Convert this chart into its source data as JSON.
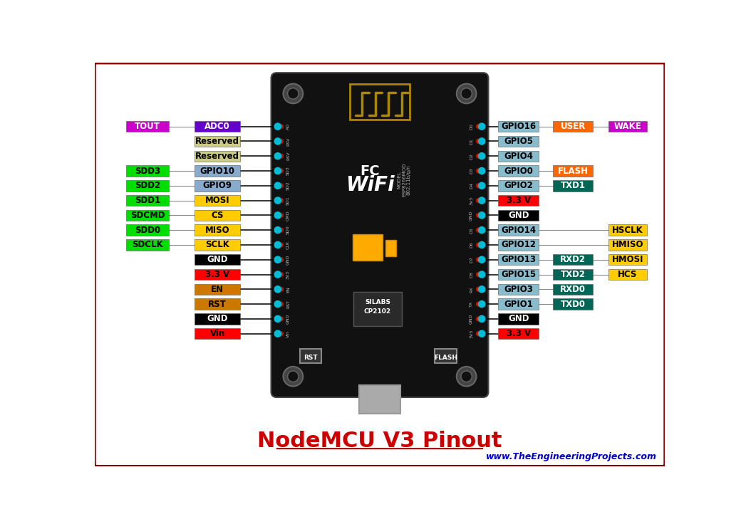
{
  "title": "NodeMCU V3 Pinout",
  "website": "www.TheEngineeringProjects.com",
  "background_color": "#ffffff",
  "border_color": "#8B0000",
  "board_color": "#111111",
  "pin_dot_color": "#00BCD4",
  "fig_w": 10.4,
  "fig_h": 7.36,
  "dpi": 100,
  "left_pins": [
    {
      "row": 0,
      "l1": "TOUT",
      "c1": "#CC00CC",
      "tc1": "white",
      "l2": "ADC0",
      "c2": "#6600CC",
      "tc2": "white"
    },
    {
      "row": 1,
      "l1": null,
      "c1": null,
      "tc1": null,
      "l2": "Reserved",
      "c2": "#CCCC88",
      "tc2": "black"
    },
    {
      "row": 2,
      "l1": null,
      "c1": null,
      "tc1": null,
      "l2": "Reserved",
      "c2": "#CCCC88",
      "tc2": "black"
    },
    {
      "row": 3,
      "l1": "SDD3",
      "c1": "#00DD00",
      "tc1": "black",
      "l2": "GPIO10",
      "c2": "#88AACC",
      "tc2": "black"
    },
    {
      "row": 4,
      "l1": "SDD2",
      "c1": "#00DD00",
      "tc1": "black",
      "l2": "GPIO9",
      "c2": "#88AACC",
      "tc2": "black"
    },
    {
      "row": 5,
      "l1": "SDD1",
      "c1": "#00DD00",
      "tc1": "black",
      "l2": "MOSI",
      "c2": "#FFCC00",
      "tc2": "black"
    },
    {
      "row": 6,
      "l1": "SDCMD",
      "c1": "#00DD00",
      "tc1": "black",
      "l2": "CS",
      "c2": "#FFCC00",
      "tc2": "black"
    },
    {
      "row": 7,
      "l1": "SDD0",
      "c1": "#00DD00",
      "tc1": "black",
      "l2": "MISO",
      "c2": "#FFCC00",
      "tc2": "black"
    },
    {
      "row": 8,
      "l1": "SDCLK",
      "c1": "#00DD00",
      "tc1": "black",
      "l2": "SCLK",
      "c2": "#FFCC00",
      "tc2": "black"
    },
    {
      "row": 9,
      "l1": null,
      "c1": null,
      "tc1": null,
      "l2": "GND",
      "c2": "#000000",
      "tc2": "white"
    },
    {
      "row": 10,
      "l1": null,
      "c1": null,
      "tc1": null,
      "l2": "3.3 V",
      "c2": "#FF0000",
      "tc2": "black"
    },
    {
      "row": 11,
      "l1": null,
      "c1": null,
      "tc1": null,
      "l2": "EN",
      "c2": "#CC7700",
      "tc2": "black"
    },
    {
      "row": 12,
      "l1": null,
      "c1": null,
      "tc1": null,
      "l2": "RST",
      "c2": "#CC7700",
      "tc2": "black"
    },
    {
      "row": 13,
      "l1": null,
      "c1": null,
      "tc1": null,
      "l2": "GND",
      "c2": "#000000",
      "tc2": "white"
    },
    {
      "row": 14,
      "l1": null,
      "c1": null,
      "tc1": null,
      "l2": "Vin",
      "c2": "#FF0000",
      "tc2": "black"
    }
  ],
  "right_pins": [
    {
      "row": 0,
      "l1": "GPIO16",
      "c1": "#88BBCC",
      "tc1": "black",
      "l2": "USER",
      "c2": "#FF6600",
      "tc2": "white",
      "l3": "WAKE",
      "c3": "#CC00CC",
      "tc3": "white"
    },
    {
      "row": 1,
      "l1": "GPIO5",
      "c1": "#88BBCC",
      "tc1": "black",
      "l2": null,
      "c2": null,
      "tc2": null,
      "l3": null,
      "c3": null,
      "tc3": null
    },
    {
      "row": 2,
      "l1": "GPIO4",
      "c1": "#88BBCC",
      "tc1": "black",
      "l2": null,
      "c2": null,
      "tc2": null,
      "l3": null,
      "c3": null,
      "tc3": null
    },
    {
      "row": 3,
      "l1": "GPIO0",
      "c1": "#88BBCC",
      "tc1": "black",
      "l2": "FLASH",
      "c2": "#FF6600",
      "tc2": "white",
      "l3": null,
      "c3": null,
      "tc3": null
    },
    {
      "row": 4,
      "l1": "GPIO2",
      "c1": "#88BBCC",
      "tc1": "black",
      "l2": "TXD1",
      "c2": "#006655",
      "tc2": "white",
      "l3": null,
      "c3": null,
      "tc3": null
    },
    {
      "row": 5,
      "l1": "3.3 V",
      "c1": "#FF0000",
      "tc1": "black",
      "l2": null,
      "c2": null,
      "tc2": null,
      "l3": null,
      "c3": null,
      "tc3": null
    },
    {
      "row": 6,
      "l1": "GND",
      "c1": "#000000",
      "tc1": "white",
      "l2": null,
      "c2": null,
      "tc2": null,
      "l3": null,
      "c3": null,
      "tc3": null
    },
    {
      "row": 7,
      "l1": "GPIO14",
      "c1": "#88BBCC",
      "tc1": "black",
      "l2": null,
      "c2": null,
      "tc2": null,
      "l3": "HSCLK",
      "c3": "#FFCC00",
      "tc3": "black"
    },
    {
      "row": 8,
      "l1": "GPIO12",
      "c1": "#88BBCC",
      "tc1": "black",
      "l2": null,
      "c2": null,
      "tc2": null,
      "l3": "HMISO",
      "c3": "#FFCC00",
      "tc3": "black"
    },
    {
      "row": 9,
      "l1": "GPIO13",
      "c1": "#88BBCC",
      "tc1": "black",
      "l2": "RXD2",
      "c2": "#006655",
      "tc2": "white",
      "l3": "HMOSI",
      "c3": "#FFCC00",
      "tc3": "black"
    },
    {
      "row": 10,
      "l1": "GPIO15",
      "c1": "#88BBCC",
      "tc1": "black",
      "l2": "TXD2",
      "c2": "#006655",
      "tc2": "white",
      "l3": "HCS",
      "c3": "#FFCC00",
      "tc3": "black"
    },
    {
      "row": 11,
      "l1": "GPIO3",
      "c1": "#88BBCC",
      "tc1": "black",
      "l2": "RXD0",
      "c2": "#006655",
      "tc2": "white",
      "l3": null,
      "c3": null,
      "tc3": null
    },
    {
      "row": 12,
      "l1": "GPIO1",
      "c1": "#88BBCC",
      "tc1": "black",
      "l2": "TXD0",
      "c2": "#006655",
      "tc2": "white",
      "l3": null,
      "c3": null,
      "tc3": null
    },
    {
      "row": 13,
      "l1": "GND",
      "c1": "#000000",
      "tc1": "white",
      "l2": null,
      "c2": null,
      "tc2": null,
      "l3": null,
      "c3": null,
      "tc3": null
    },
    {
      "row": 14,
      "l1": "3.3 V",
      "c1": "#FF0000",
      "tc1": "black",
      "l2": null,
      "c2": null,
      "tc2": null,
      "l3": null,
      "c3": null,
      "tc3": null
    }
  ]
}
